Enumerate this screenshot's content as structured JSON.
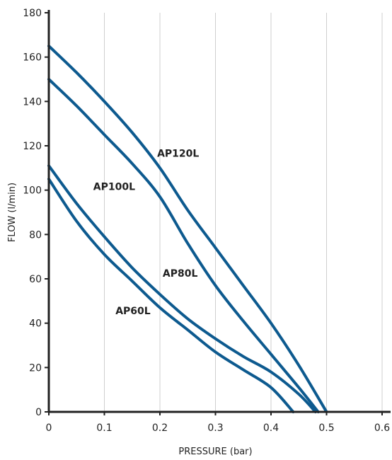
{
  "chart_data": {
    "type": "line",
    "xlabel": "PRESSURE (bar)",
    "ylabel": "FLOW (l/min)",
    "xlim": [
      0,
      0.6
    ],
    "ylim": [
      0,
      180
    ],
    "xticks": [
      0,
      0.1,
      0.2,
      0.3,
      0.4,
      0.5,
      0.6
    ],
    "xtick_labels": [
      "0",
      "0.1",
      "0.2",
      "0.3",
      "0.4",
      "0.5",
      "0.6"
    ],
    "yticks": [
      0,
      20,
      40,
      60,
      80,
      100,
      120,
      140,
      160,
      180
    ],
    "ytick_labels": [
      "0",
      "20",
      "40",
      "60",
      "80",
      "100",
      "120",
      "140",
      "160",
      "180"
    ],
    "grid": "vertical",
    "line_color": "#0d5a8f",
    "series": [
      {
        "name": "AP120L",
        "x": [
          0,
          0.05,
          0.1,
          0.15,
          0.2,
          0.25,
          0.3,
          0.35,
          0.4,
          0.45,
          0.5
        ],
        "y": [
          165,
          153,
          140,
          126,
          110,
          91,
          74,
          57,
          40,
          21,
          0
        ]
      },
      {
        "name": "AP100L",
        "x": [
          0,
          0.05,
          0.1,
          0.15,
          0.2,
          0.25,
          0.3,
          0.35,
          0.4,
          0.45,
          0.485
        ],
        "y": [
          150,
          138,
          125,
          112,
          97,
          76,
          57,
          41,
          26,
          11,
          0
        ]
      },
      {
        "name": "AP80L",
        "x": [
          0,
          0.05,
          0.1,
          0.15,
          0.2,
          0.25,
          0.3,
          0.35,
          0.4,
          0.45,
          0.48
        ],
        "y": [
          111,
          94,
          79,
          65,
          53,
          42,
          33,
          25,
          18,
          8,
          0
        ]
      },
      {
        "name": "AP60L",
        "x": [
          0,
          0.05,
          0.1,
          0.15,
          0.2,
          0.25,
          0.3,
          0.35,
          0.4,
          0.44
        ],
        "y": [
          105,
          86,
          71,
          59,
          47,
          37,
          27,
          19,
          11,
          0
        ]
      }
    ],
    "annotations": [
      {
        "text": "AP120L",
        "x": 0.195,
        "y": 115
      },
      {
        "text": "AP100L",
        "x": 0.08,
        "y": 100
      },
      {
        "text": "AP80L",
        "x": 0.205,
        "y": 61
      },
      {
        "text": "AP60L",
        "x": 0.12,
        "y": 44
      }
    ]
  }
}
